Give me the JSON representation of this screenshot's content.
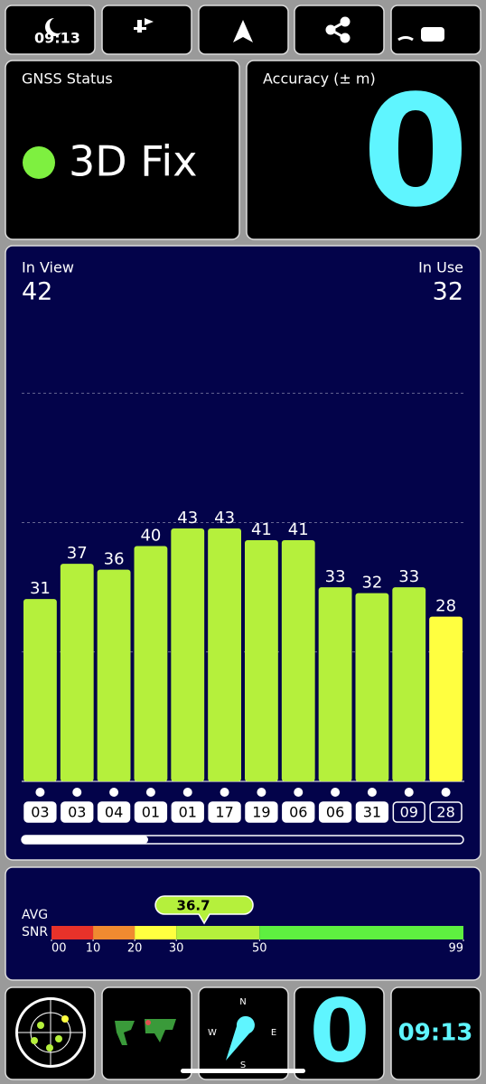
{
  "status_bar": {
    "time": "09:13"
  },
  "gnss_status": {
    "title": "GNSS Status",
    "status": "3D Fix"
  },
  "accuracy": {
    "title": "Accuracy (± m)",
    "value": "0"
  },
  "satellites": {
    "in_view_label": "In View",
    "in_view": 42,
    "in_use_label": "In Use",
    "in_use": 32,
    "chart": {
      "type": "bar",
      "categories": [
        "03",
        "03",
        "04",
        "01",
        "01",
        "17",
        "19",
        "06",
        "06",
        "31",
        "09",
        "28"
      ],
      "values": [
        31,
        37,
        36,
        40,
        43,
        43,
        41,
        41,
        33,
        32,
        33,
        28
      ],
      "colors": [
        "#b5f03c",
        "#b5f03c",
        "#b5f03c",
        "#b5f03c",
        "#b5f03c",
        "#b5f03c",
        "#b5f03c",
        "#b5f03c",
        "#b5f03c",
        "#b5f03c",
        "#b5f03c",
        "#ffff40"
      ],
      "ylim": [
        0,
        88
      ],
      "grid": [
        22,
        44,
        66
      ]
    }
  },
  "snr": {
    "label_top": "AVG",
    "label_bottom": "SNR",
    "average": 36.7,
    "ticks": [
      {
        "value": 0,
        "label": "00"
      },
      10,
      20,
      30,
      50,
      99
    ],
    "segment_colors": [
      "#e8322a",
      "#f08a30",
      "#ffff40",
      "#b5f03c",
      "#5ef040"
    ]
  },
  "bottom": {
    "compass": {
      "n": "N",
      "e": "E",
      "s": "S",
      "w": "W"
    },
    "accuracy": "0",
    "time": "09:13"
  }
}
